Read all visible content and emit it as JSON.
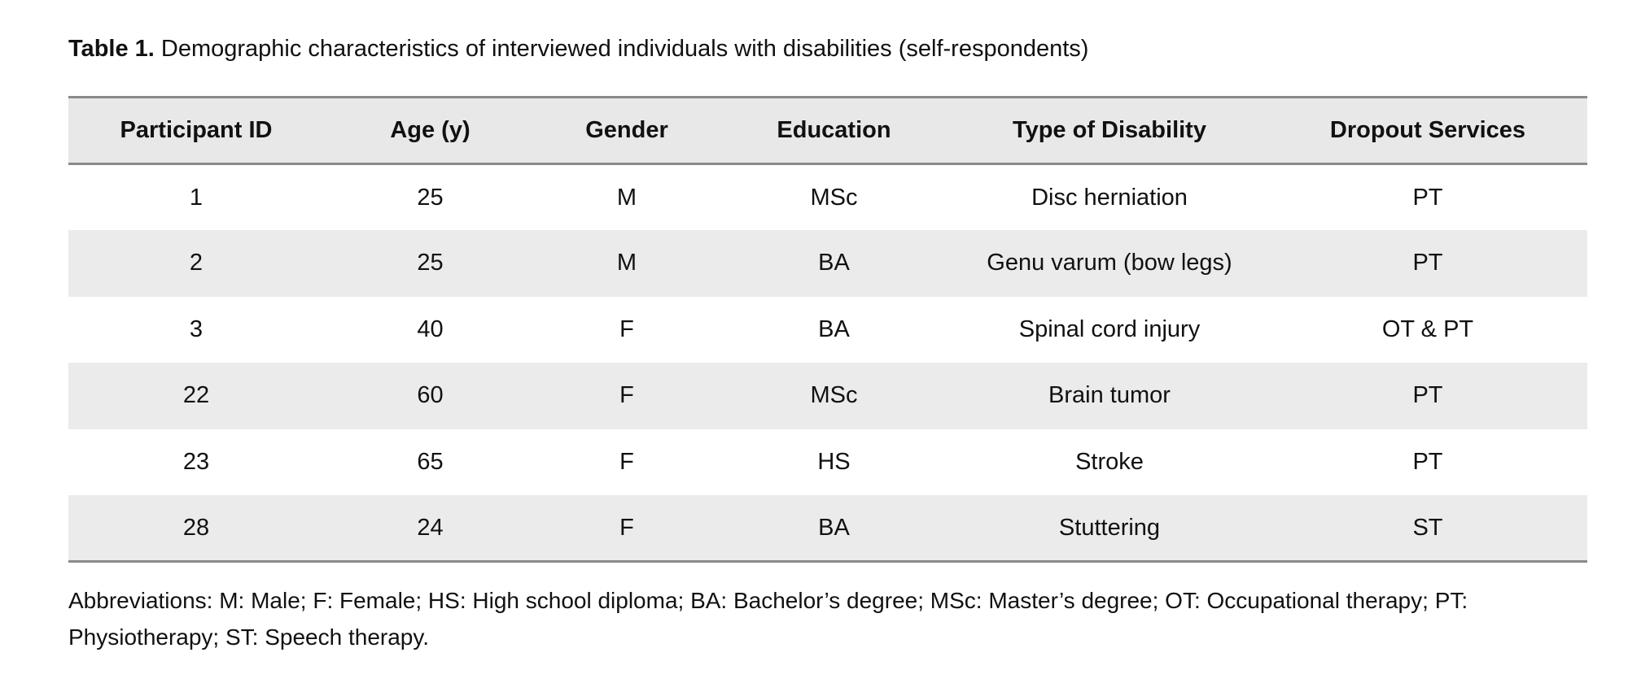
{
  "caption": {
    "label": "Table 1.",
    "text": " Demographic characteristics of interviewed individuals with disabilities (self-respondents)"
  },
  "table": {
    "headers": [
      "Participant ID",
      "Age (y)",
      "Gender",
      "Education",
      "Type of Disability",
      "Dropout Services"
    ],
    "rows": [
      [
        "1",
        "25",
        "M",
        "MSc",
        "Disc herniation",
        "PT"
      ],
      [
        "2",
        "25",
        "M",
        "BA",
        "Genu varum (bow legs)",
        "PT"
      ],
      [
        "3",
        "40",
        "F",
        "BA",
        "Spinal cord injury",
        "OT & PT"
      ],
      [
        "22",
        "60",
        "F",
        "MSc",
        "Brain tumor",
        "PT"
      ],
      [
        "23",
        "65",
        "F",
        "HS",
        "Stroke",
        "PT"
      ],
      [
        "28",
        "24",
        "F",
        "BA",
        "Stuttering",
        "ST"
      ]
    ]
  },
  "footnote": "Abbreviations: M: Male; F: Female; HS: High school diploma; BA: Bachelor’s degree; MSc: Master’s degree; OT: Occupational therapy; PT: Physiotherapy; ST: Speech therapy."
}
